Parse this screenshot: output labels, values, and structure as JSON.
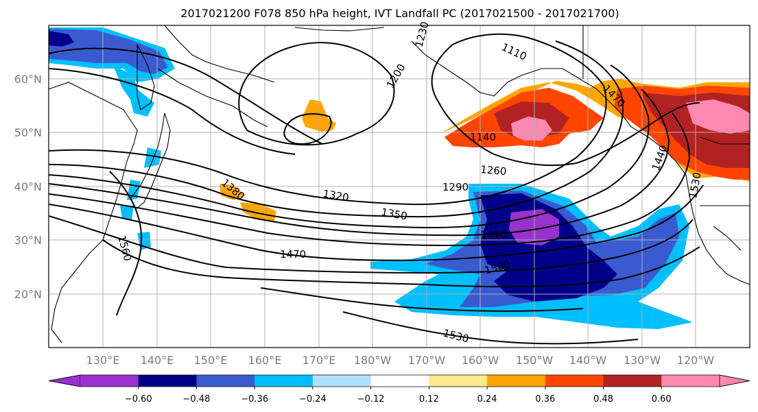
{
  "title": "2017021200 F078 850 hPa height, IVT Landfall PC (2017021500 - 2017021700)",
  "lat_labels": [
    "60°N",
    "50°N",
    "40°N",
    "30°N",
    "20°N"
  ],
  "lon_labels": [
    "130°E",
    "140°E",
    "150°E",
    "160°E",
    "170°E",
    "180°W",
    "170°W",
    "160°W",
    "150°W",
    "140°W",
    "130°W",
    "120°W"
  ],
  "contour_labels": [
    "1110",
    "1200",
    "1230",
    "1140",
    "1260",
    "1290",
    "1320",
    "1350",
    "1380",
    "1410",
    "1470",
    "1500",
    "1530",
    "1560",
    "1440",
    "1530",
    "1470"
  ],
  "colorbar": {
    "colors": [
      "#9932cc",
      "#00008b",
      "#3a5bcf",
      "#00bfff",
      "#aee1ff",
      "#ffffff",
      "#ffe98a",
      "#ffa500",
      "#ff4500",
      "#b22222",
      "#ff88b0"
    ],
    "tick_labels": [
      "−0.60",
      "−0.48",
      "−0.36",
      "−0.24",
      "−0.12",
      "0.12",
      "0.24",
      "0.36",
      "0.48",
      "0.60"
    ]
  },
  "shading_colors": {
    "pos1": "#ffe98a",
    "pos2": "#ffa500",
    "pos3": "#ff4500",
    "pos4": "#b22222",
    "pos5": "#ff88b0",
    "neg1": "#aee1ff",
    "neg2": "#00bfff",
    "neg3": "#3a5bcf",
    "neg4": "#00008b",
    "neg5": "#9932cc"
  }
}
